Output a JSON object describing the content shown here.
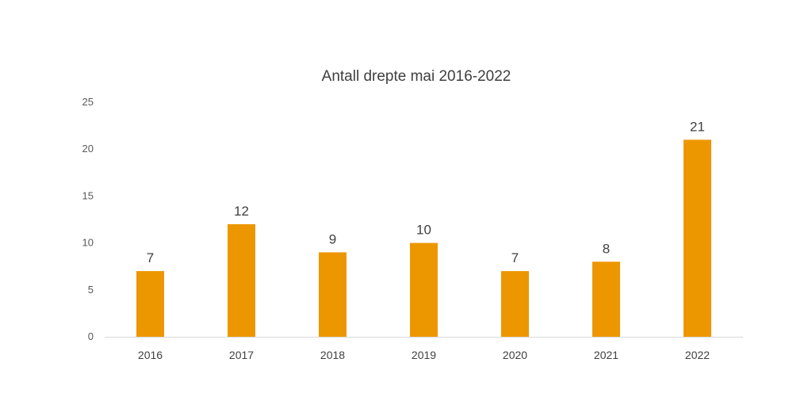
{
  "chart_data": {
    "type": "bar",
    "title": "Antall drepte mai 2016-2022",
    "categories": [
      "2016",
      "2017",
      "2018",
      "2019",
      "2020",
      "2021",
      "2022"
    ],
    "values": [
      7,
      12,
      9,
      10,
      7,
      8,
      21
    ],
    "y_ticks": [
      "0",
      "5",
      "10",
      "15",
      "20",
      "25"
    ],
    "ylim": [
      0,
      25
    ],
    "xlabel": "",
    "ylabel": "",
    "grid": false,
    "data_labels": true,
    "colors": {
      "bar": "#ED9700",
      "axis": "#D9D9D9"
    }
  }
}
